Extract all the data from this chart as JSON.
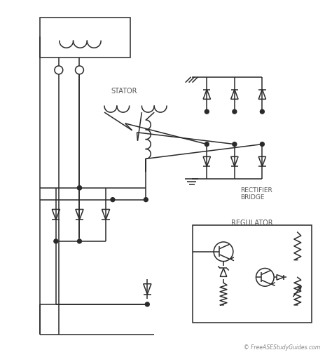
{
  "watermark": "© FreeASEStudyGuides.com",
  "bg_color": "#ffffff",
  "line_color": "#2a2a2a",
  "text_color": "#555555",
  "labels": {
    "stator": "STATOR",
    "rectifier_bridge": "RECTIFIER\nBRIDGE",
    "regulator": "REGULATOR"
  },
  "figsize": [
    4.74,
    5.09
  ],
  "dpi": 100
}
